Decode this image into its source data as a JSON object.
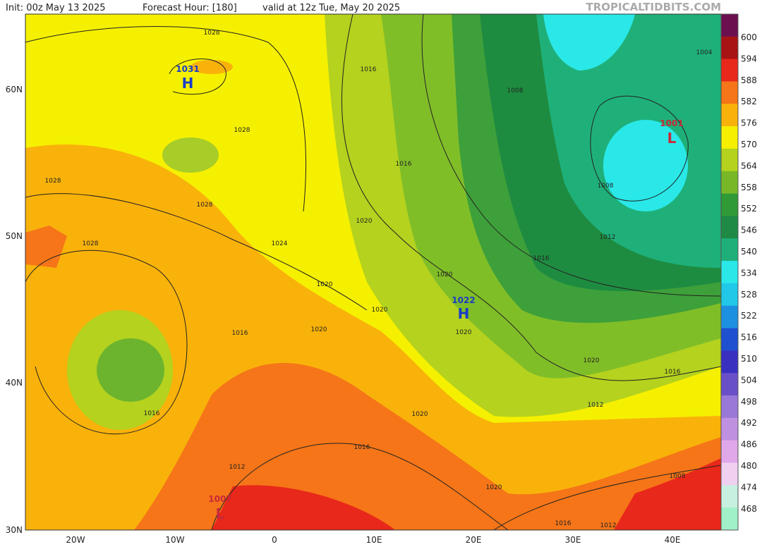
{
  "header": {
    "init": "Init: 00z May 13 2025",
    "forecast_hour": "Forecast Hour: [180]",
    "valid": "valid at 12z Tue, May 20 2025",
    "site": "TROPICALTIDBITS.COM"
  },
  "lat_labels": [
    "60N",
    "50N",
    "40N",
    "30N"
  ],
  "lon_labels": [
    "20W",
    "10W",
    "0",
    "10E",
    "20E",
    "30E",
    "40E"
  ],
  "colorbar": {
    "levels": [
      {
        "label": "600",
        "color": "#6b0f4f"
      },
      {
        "label": "594",
        "color": "#a81414"
      },
      {
        "label": "588",
        "color": "#e8281a"
      },
      {
        "label": "582",
        "color": "#f57518"
      },
      {
        "label": "576",
        "color": "#f9b20a"
      },
      {
        "label": "570",
        "color": "#f5f000"
      },
      {
        "label": "564",
        "color": "#b4d21e"
      },
      {
        "label": "558",
        "color": "#78b828"
      },
      {
        "label": "552",
        "color": "#2f9a36"
      },
      {
        "label": "546",
        "color": "#1e8a46"
      },
      {
        "label": "540",
        "color": "#1fb07a"
      },
      {
        "label": "534",
        "color": "#2ae8e8"
      },
      {
        "label": "528",
        "color": "#22c8e8"
      },
      {
        "label": "522",
        "color": "#1e90e0"
      },
      {
        "label": "516",
        "color": "#1e50d0"
      },
      {
        "label": "510",
        "color": "#3a30c0"
      },
      {
        "label": "504",
        "color": "#6a50c8"
      },
      {
        "label": "498",
        "color": "#9a78d8"
      },
      {
        "label": "492",
        "color": "#c090e0"
      },
      {
        "label": "486",
        "color": "#e0a8e8"
      },
      {
        "label": "480",
        "color": "#f0d0f0"
      },
      {
        "label": "474",
        "color": "#c8f0e0"
      },
      {
        "label": "468",
        "color": "#a0f0c8"
      }
    ]
  },
  "isobar_labels": [
    "1028",
    "1028",
    "1028",
    "1028",
    "1028",
    "1024",
    "1016",
    "1016",
    "1020",
    "1020",
    "1020",
    "1020",
    "1020",
    "1016",
    "1020",
    "1016",
    "1020",
    "1016",
    "1012",
    "1020",
    "1016",
    "1012",
    "1008",
    "1012",
    "1016",
    "1020",
    "1016",
    "1012",
    "1008",
    "1008",
    "1004"
  ],
  "centers": [
    {
      "value": "1031",
      "symbol": "H"
    },
    {
      "value": "1022",
      "symbol": "H"
    },
    {
      "value": "1001",
      "symbol": "L"
    },
    {
      "value": "1007",
      "symbol": "L"
    }
  ]
}
